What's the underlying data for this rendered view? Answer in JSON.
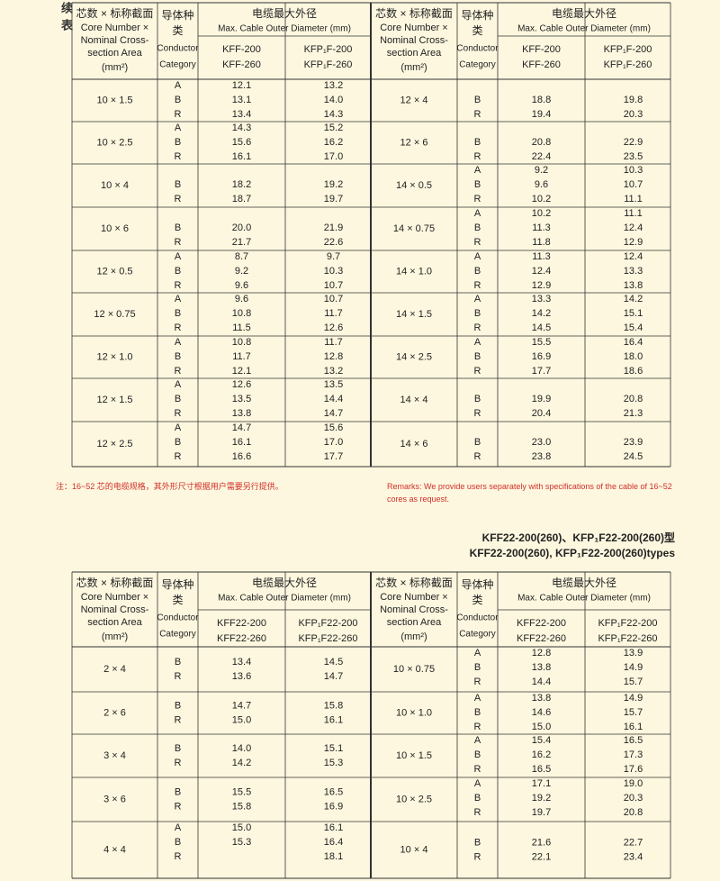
{
  "continued": "续表",
  "note_cn": "注：16~52 芯的电缆规格，其外形尺寸根据用户需要另行提供。",
  "note_en": "Remarks: We  provide users separately with specifications of the cable of 16~52 cores as request.",
  "title_cn": "KFF22-200(260)、KFP₁F22-200(260)型",
  "title_en": "KFF22-200(260), KFP₁F22-200(260)types",
  "tables": [
    {
      "header": {
        "spec": [
          "芯数 × 标称截面",
          "Core Number ×",
          "Nominal Cross-",
          "section Area",
          "(mm²)"
        ],
        "conductor": [
          "导体种",
          "类",
          "Conductor",
          "Category"
        ],
        "diameter": [
          "电缆最大外径",
          "Max. Cable Outer Diameter (mm)"
        ],
        "col1": [
          "KFF-200",
          "KFF-260"
        ],
        "col2": [
          "KFP₁F-200",
          "KFP₁F-260"
        ]
      },
      "halves": [
        [
          {
            "spec": "10 × 1.5",
            "rows": [
              [
                "A",
                "12.1",
                "13.2"
              ],
              [
                "B",
                "13.1",
                "14.0"
              ],
              [
                "R",
                "13.4",
                "14.3"
              ]
            ]
          },
          {
            "spec": "10 × 2.5",
            "rows": [
              [
                "A",
                "14.3",
                "15.2"
              ],
              [
                "B",
                "15.6",
                "16.2"
              ],
              [
                "R",
                "16.1",
                "17.0"
              ]
            ]
          },
          {
            "spec": "10 × 4",
            "rows": [
              [
                "B",
                "18.2",
                "19.2"
              ],
              [
                "R",
                "18.7",
                "19.7"
              ]
            ]
          },
          {
            "spec": "10 × 6",
            "rows": [
              [
                "B",
                "20.0",
                "21.9"
              ],
              [
                "R",
                "21.7",
                "22.6"
              ]
            ]
          },
          {
            "spec": "12 × 0.5",
            "rows": [
              [
                "A",
                "8.7",
                "9.7"
              ],
              [
                "B",
                "9.2",
                "10.3"
              ],
              [
                "R",
                "9.6",
                "10.7"
              ]
            ]
          },
          {
            "spec": "12 × 0.75",
            "rows": [
              [
                "A",
                "9.6",
                "10.7"
              ],
              [
                "B",
                "10.8",
                "11.7"
              ],
              [
                "R",
                "11.5",
                "12.6"
              ]
            ]
          },
          {
            "spec": "12 × 1.0",
            "rows": [
              [
                "A",
                "10.8",
                "11.7"
              ],
              [
                "B",
                "11.7",
                "12.8"
              ],
              [
                "R",
                "12.1",
                "13.2"
              ]
            ]
          },
          {
            "spec": "12 × 1.5",
            "rows": [
              [
                "A",
                "12.6",
                "13.5"
              ],
              [
                "B",
                "13.5",
                "14.4"
              ],
              [
                "R",
                "13.8",
                "14.7"
              ]
            ]
          },
          {
            "spec": "12 × 2.5",
            "rows": [
              [
                "A",
                "14.7",
                "15.6"
              ],
              [
                "B",
                "16.1",
                "17.0"
              ],
              [
                "R",
                "16.6",
                "17.7"
              ]
            ]
          }
        ],
        [
          {
            "spec": "12 × 4",
            "rows": [
              [
                "B",
                "18.8",
                "19.8"
              ],
              [
                "R",
                "19.4",
                "20.3"
              ]
            ]
          },
          {
            "spec": "12 × 6",
            "rows": [
              [
                "B",
                "20.8",
                "22.9"
              ],
              [
                "R",
                "22.4",
                "23.5"
              ]
            ]
          },
          {
            "spec": "14 × 0.5",
            "rows": [
              [
                "A",
                "9.2",
                "10.3"
              ],
              [
                "B",
                "9.6",
                "10.7"
              ],
              [
                "R",
                "10.2",
                "11.1"
              ]
            ]
          },
          {
            "spec": "14 × 0.75",
            "rows": [
              [
                "A",
                "10.2",
                "11.1"
              ],
              [
                "B",
                "11.3",
                "12.4"
              ],
              [
                "R",
                "11.8",
                "12.9"
              ]
            ]
          },
          {
            "spec": "14 × 1.0",
            "rows": [
              [
                "A",
                "11.3",
                "12.4"
              ],
              [
                "B",
                "12.4",
                "13.3"
              ],
              [
                "R",
                "12.9",
                "13.8"
              ]
            ]
          },
          {
            "spec": "14 × 1.5",
            "rows": [
              [
                "A",
                "13.3",
                "14.2"
              ],
              [
                "B",
                "14.2",
                "15.1"
              ],
              [
                "R",
                "14.5",
                "15.4"
              ]
            ]
          },
          {
            "spec": "14 × 2.5",
            "rows": [
              [
                "A",
                "15.5",
                "16.4"
              ],
              [
                "B",
                "16.9",
                "18.0"
              ],
              [
                "R",
                "17.7",
                "18.6"
              ]
            ]
          },
          {
            "spec": "14 × 4",
            "rows": [
              [
                "B",
                "19.9",
                "20.8"
              ],
              [
                "R",
                "20.4",
                "21.3"
              ]
            ]
          },
          {
            "spec": "14 × 6",
            "rows": [
              [
                "B",
                "23.0",
                "23.9"
              ],
              [
                "R",
                "23.8",
                "24.5"
              ]
            ]
          }
        ]
      ]
    },
    {
      "header": {
        "spec": [
          "芯数 × 标称截面",
          "Core Number ×",
          "Nominal Cross-",
          "section Area",
          "(mm²)"
        ],
        "conductor": [
          "导体种",
          "类",
          "Conductor",
          "Category"
        ],
        "diameter": [
          "电缆最大外径",
          "Max. Cable Outer Diameter (mm)"
        ],
        "col1": [
          "KFF22-200",
          "KFF22-260"
        ],
        "col2": [
          "KFP₁F22-200",
          "KFP₁F22-260"
        ]
      },
      "halves": [
        [
          {
            "spec": "2 × 4",
            "rows": [
              [
                "B",
                "13.4",
                "14.5"
              ],
              [
                "R",
                "13.6",
                "14.7"
              ]
            ]
          },
          {
            "spec": "2 × 6",
            "rows": [
              [
                "B",
                "14.7",
                "15.8"
              ],
              [
                "R",
                "15.0",
                "16.1"
              ]
            ]
          },
          {
            "spec": "3 × 4",
            "rows": [
              [
                "B",
                "14.0",
                "15.1"
              ],
              [
                "R",
                "14.2",
                "15.3"
              ]
            ]
          },
          {
            "spec": "3 × 6",
            "rows": [
              [
                "B",
                "15.5",
                "16.5"
              ],
              [
                "R",
                "15.8",
                "16.9"
              ]
            ]
          },
          {
            "spec": "4 × 4",
            "rows": [
              [
                "A",
                "15.0",
                "16.1"
              ],
              [
                "B",
                "15.3",
                "16.4"
              ],
              [
                "R",
                null,
                "18.1"
              ]
            ]
          }
        ],
        [
          {
            "spec": "10 × 0.75",
            "rows": [
              [
                "A",
                "12.8",
                "13.9"
              ],
              [
                "B",
                "13.8",
                "14.9"
              ],
              [
                "R",
                "14.4",
                "15.7"
              ]
            ]
          },
          {
            "spec": "10 × 1.0",
            "rows": [
              [
                "A",
                "13.8",
                "14.9"
              ],
              [
                "B",
                "14.6",
                "15.7"
              ],
              [
                "R",
                "15.0",
                "16.1"
              ]
            ]
          },
          {
            "spec": "10 × 1.5",
            "rows": [
              [
                "A",
                "15.4",
                "16.5"
              ],
              [
                "B",
                "16.2",
                "17.3"
              ],
              [
                "R",
                "16.5",
                "17.6"
              ]
            ]
          },
          {
            "spec": "10 × 2.5",
            "rows": [
              [
                "A",
                "17.1",
                "19.0"
              ],
              [
                "B",
                "19.2",
                "20.3"
              ],
              [
                "R",
                "19.7",
                "20.8"
              ]
            ]
          },
          {
            "spec": "10 × 4",
            "rows": [
              [
                "B",
                "21.6",
                "22.7"
              ],
              [
                "R",
                "22.1",
                "23.4"
              ]
            ]
          }
        ]
      ]
    }
  ]
}
